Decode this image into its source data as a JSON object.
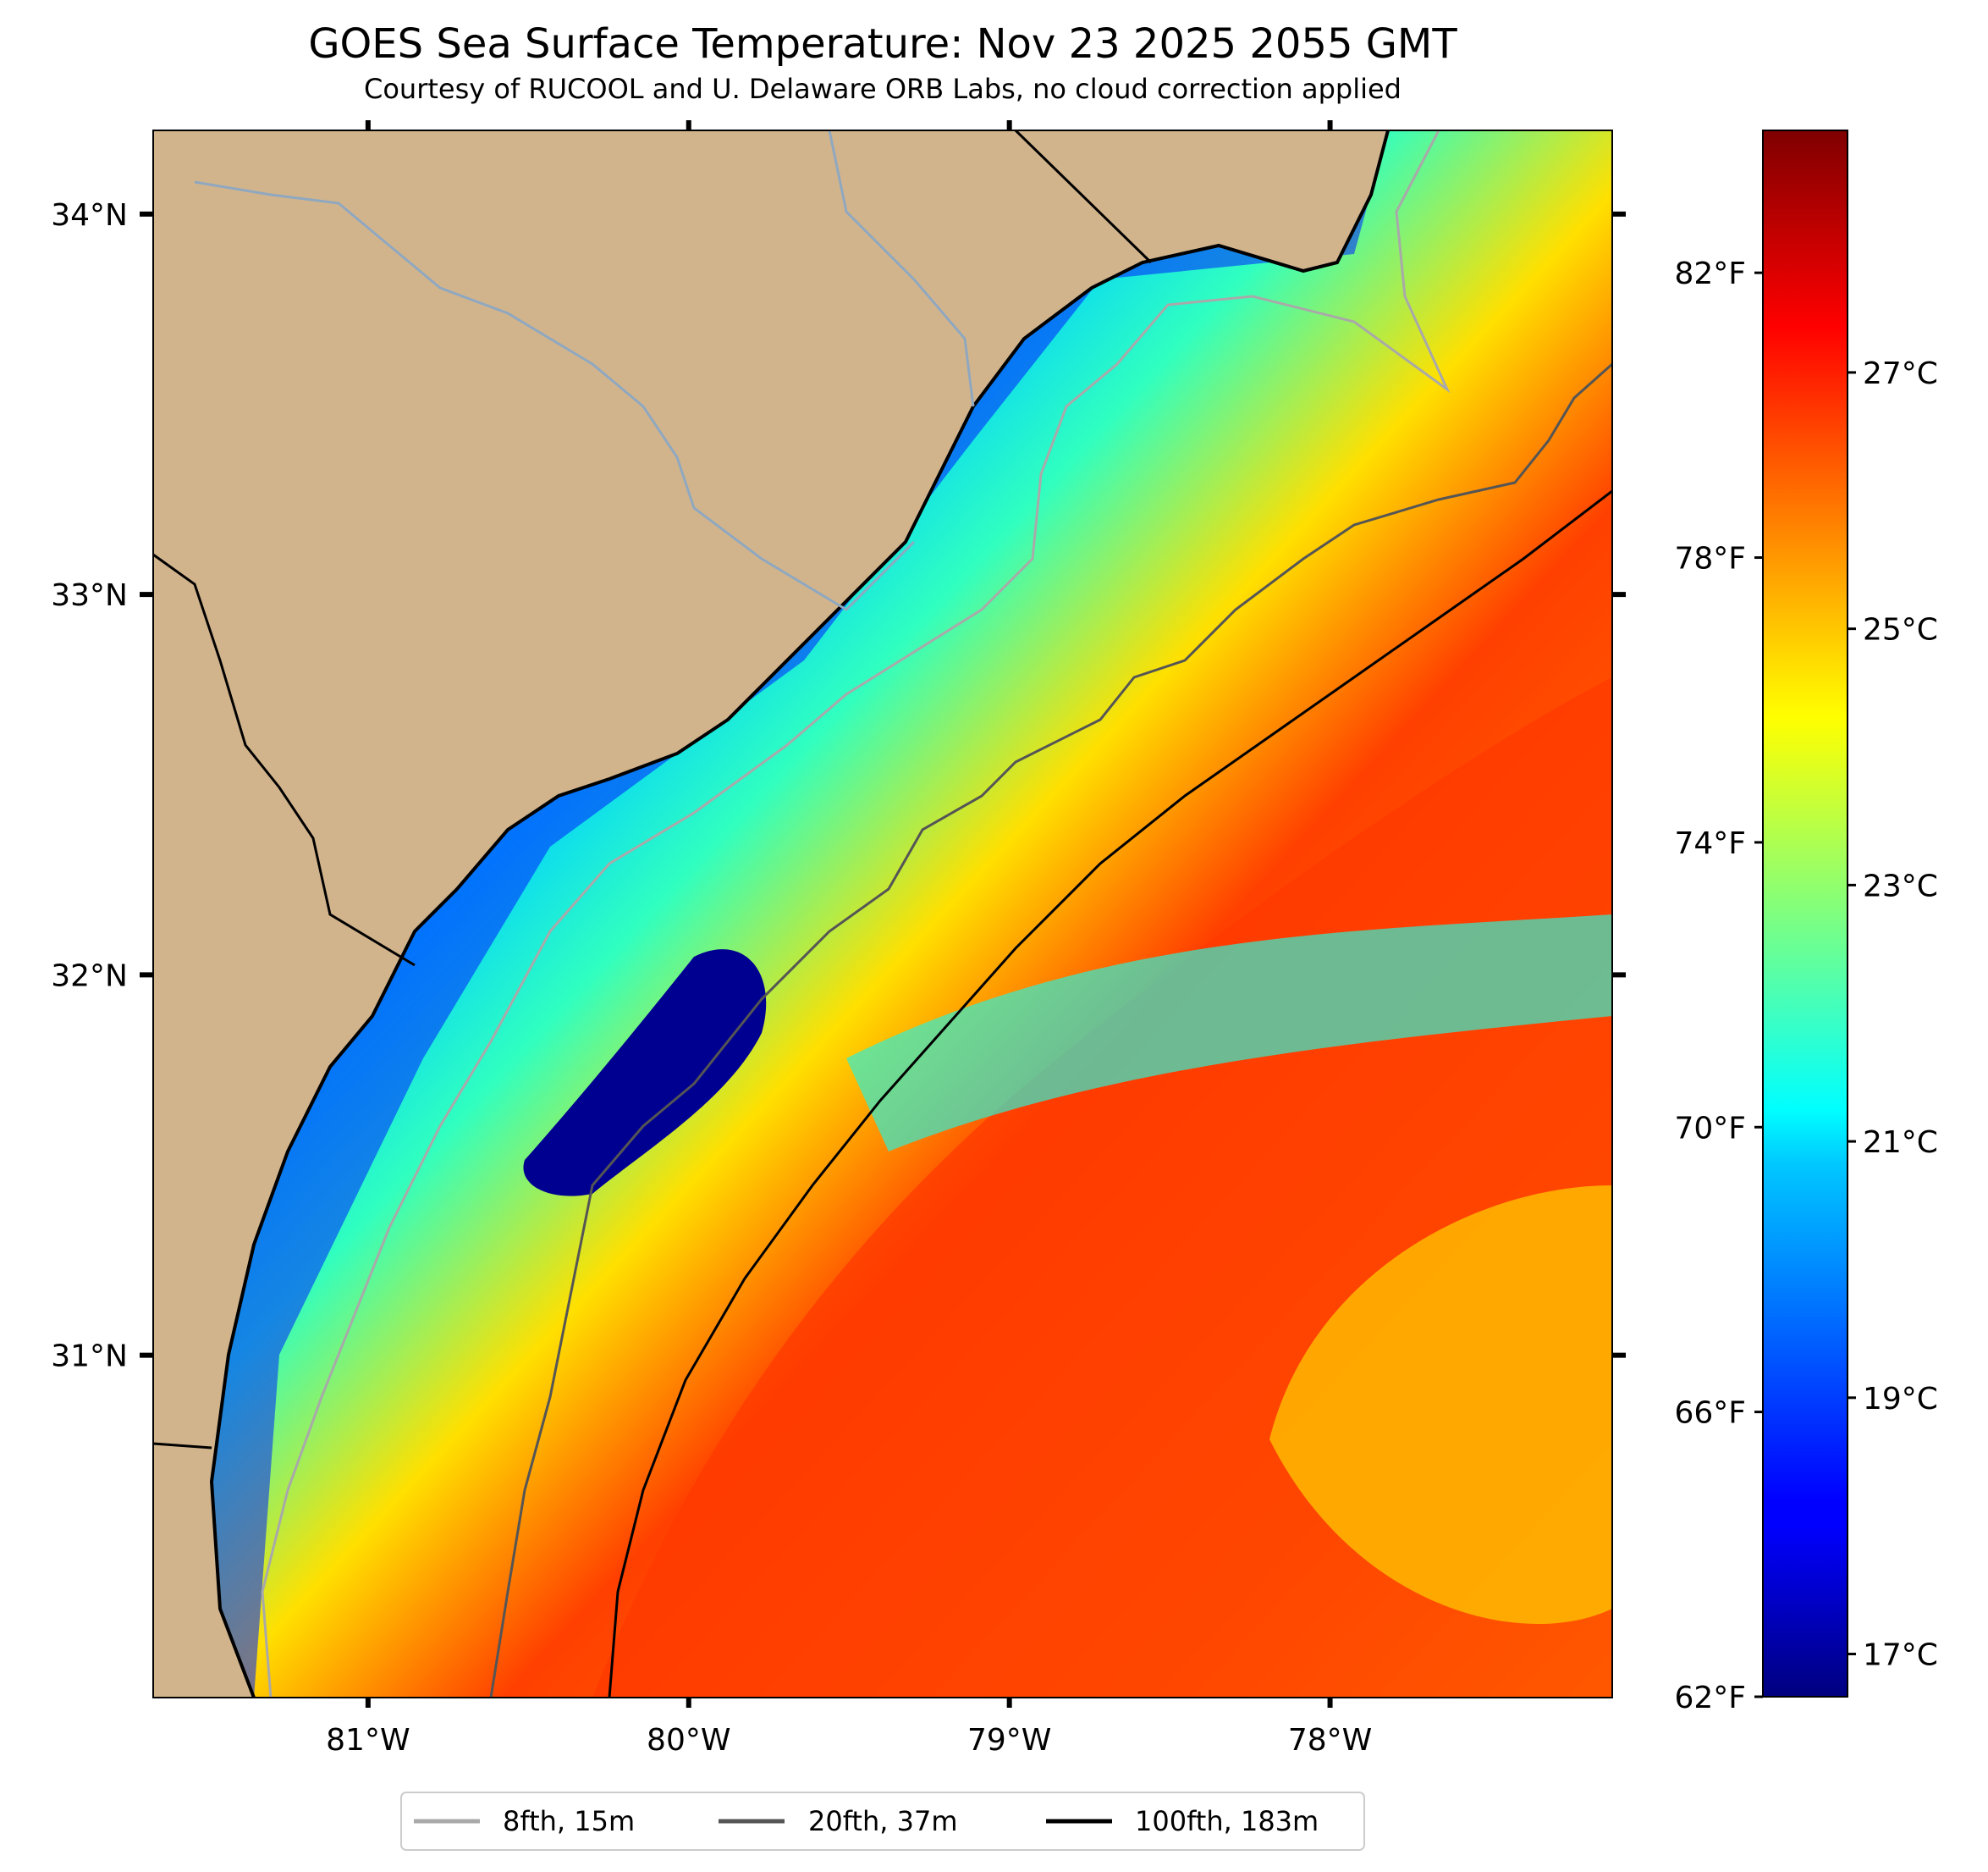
{
  "title": "GOES Sea Surface Temperature: Nov 23 2025 2055 GMT",
  "subtitle": "Courtesy of RUCOOL and U. Delaware ORB Labs, no cloud correction applied",
  "map": {
    "lon_range": [
      -81.67,
      -77.12
    ],
    "lat_range": [
      30.1,
      34.22
    ],
    "lon_ticks": [
      {
        "value": -81,
        "label": "81°W"
      },
      {
        "value": -80,
        "label": "80°W"
      },
      {
        "value": -79,
        "label": "79°W"
      },
      {
        "value": -78,
        "label": "78°W"
      }
    ],
    "lat_ticks": [
      {
        "value": 34,
        "label": "34°N"
      },
      {
        "value": 33,
        "label": "33°N"
      },
      {
        "value": 32,
        "label": "32°N"
      },
      {
        "value": 31,
        "label": "31°N"
      }
    ],
    "land_color": "#d2b48c",
    "colormap": "jet"
  },
  "colorbar": {
    "celsius_ticks": [
      {
        "value": 17,
        "label": "17°C"
      },
      {
        "value": 19,
        "label": "19°C"
      },
      {
        "value": 21,
        "label": "21°C"
      },
      {
        "value": 23,
        "label": "23°C"
      },
      {
        "value": 25,
        "label": "25°C"
      },
      {
        "value": 27,
        "label": "27°C"
      }
    ],
    "fahrenheit_ticks": [
      {
        "value": 62,
        "label": "62°F"
      },
      {
        "value": 66,
        "label": "66°F"
      },
      {
        "value": 70,
        "label": "70°F"
      },
      {
        "value": 74,
        "label": "74°F"
      },
      {
        "value": 78,
        "label": "78°F"
      },
      {
        "value": 82,
        "label": "82°F"
      }
    ],
    "range_f": [
      62,
      84
    ]
  },
  "legend": [
    {
      "label": "8fth, 15m",
      "color": "#a9a9a9"
    },
    {
      "label": "20fth, 37m",
      "color": "#555555"
    },
    {
      "label": "100fth, 183m",
      "color": "#000000"
    }
  ]
}
